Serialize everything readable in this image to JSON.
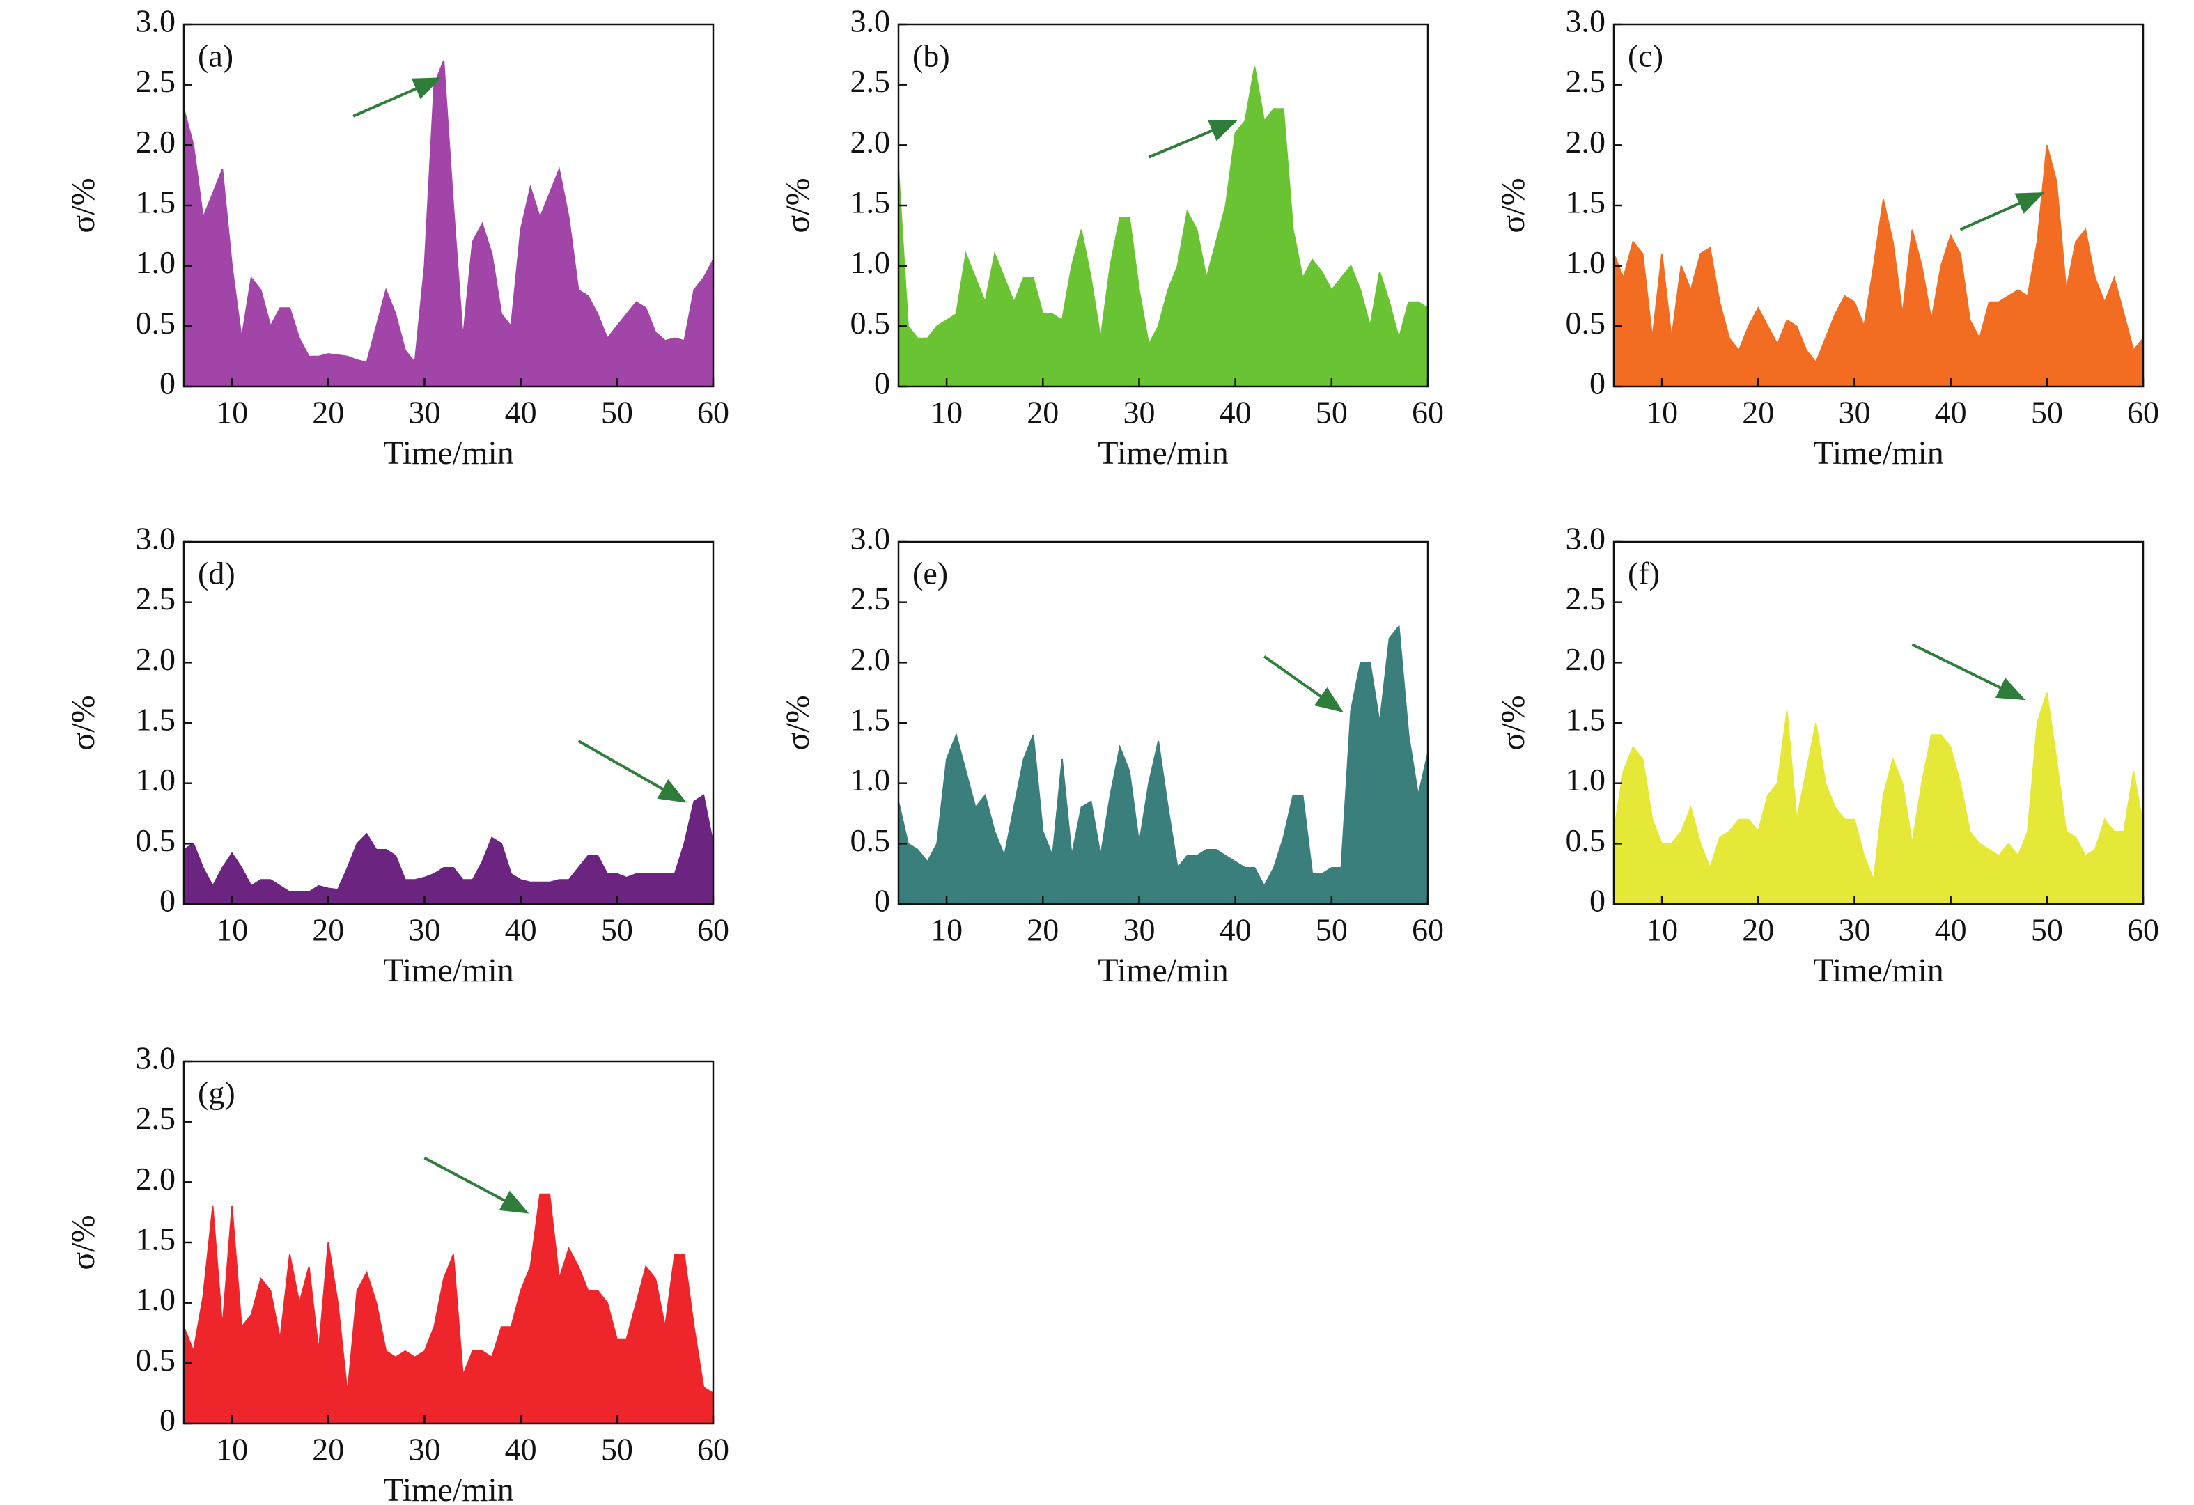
{
  "chart_data": [
    {
      "type": "area",
      "annotations": [
        "(a)"
      ],
      "x_label": "Time/min",
      "y_label": "σ/%",
      "color": "#a245a8",
      "x": [
        5,
        6,
        7,
        8,
        9,
        10,
        11,
        12,
        13,
        14,
        15,
        16,
        17,
        18,
        19,
        20,
        21,
        22,
        23,
        24,
        25,
        26,
        27,
        28,
        29,
        30,
        31,
        32,
        33,
        34,
        35,
        36,
        37,
        38,
        39,
        40,
        41,
        42,
        43,
        44,
        45,
        46,
        47,
        48,
        49,
        50,
        51,
        52,
        53,
        54,
        55,
        56,
        57,
        58,
        59,
        60
      ],
      "values": [
        2.3,
        2.0,
        1.4,
        1.6,
        1.8,
        1.0,
        0.4,
        0.9,
        0.8,
        0.5,
        0.65,
        0.65,
        0.4,
        0.25,
        0.25,
        0.27,
        0.26,
        0.25,
        0.22,
        0.2,
        0.5,
        0.8,
        0.6,
        0.3,
        0.2,
        1.0,
        2.5,
        2.7,
        1.5,
        0.4,
        1.2,
        1.35,
        1.1,
        0.6,
        0.5,
        1.3,
        1.65,
        1.4,
        1.6,
        1.8,
        1.4,
        0.8,
        0.75,
        0.6,
        0.4,
        0.5,
        0.6,
        0.7,
        0.65,
        0.45,
        0.38,
        0.4,
        0.38,
        0.8,
        0.9,
        1.05
      ],
      "xlim": [
        5,
        60
      ],
      "xticks": [
        10,
        20,
        30,
        40,
        50,
        60
      ],
      "ylim": [
        0,
        3
      ],
      "yticks": [
        0,
        0.5,
        {
          "value": 1,
          "label": "1.0"
        },
        1.5,
        {
          "value": 2,
          "label": "2.0"
        },
        2.5,
        {
          "value": 3,
          "label": "3.0"
        }
      ]
    },
    {
      "type": "area",
      "annotations": [
        "(b)"
      ],
      "x_label": "Time/min",
      "y_label": "σ/%",
      "color": "#6ac332",
      "x": [
        5,
        6,
        7,
        8,
        9,
        10,
        11,
        12,
        13,
        14,
        15,
        16,
        17,
        18,
        19,
        20,
        21,
        22,
        23,
        24,
        25,
        26,
        27,
        28,
        29,
        30,
        31,
        32,
        33,
        34,
        35,
        36,
        37,
        38,
        39,
        40,
        41,
        42,
        43,
        44,
        45,
        46,
        47,
        48,
        49,
        50,
        51,
        52,
        53,
        54,
        55,
        56,
        57,
        58,
        59,
        60
      ],
      "values": [
        1.8,
        0.5,
        0.4,
        0.4,
        0.5,
        0.55,
        0.6,
        1.1,
        0.9,
        0.7,
        1.1,
        0.9,
        0.7,
        0.9,
        0.9,
        0.6,
        0.6,
        0.55,
        1.0,
        1.3,
        0.9,
        0.4,
        1.0,
        1.4,
        1.4,
        0.8,
        0.35,
        0.5,
        0.8,
        1.0,
        1.45,
        1.3,
        0.9,
        1.2,
        1.5,
        2.1,
        2.2,
        2.65,
        2.2,
        2.3,
        2.3,
        1.3,
        0.9,
        1.05,
        0.95,
        0.8,
        0.9,
        1.0,
        0.8,
        0.5,
        0.95,
        0.7,
        0.4,
        0.7,
        0.7,
        0.65
      ],
      "xlim": [
        5,
        60
      ],
      "xticks": [
        10,
        20,
        30,
        40,
        50,
        60
      ],
      "ylim": [
        0,
        3
      ],
      "yticks": [
        0,
        0.5,
        {
          "value": 1,
          "label": "1.0"
        },
        1.5,
        {
          "value": 2,
          "label": "2.0"
        },
        2.5,
        {
          "value": 3,
          "label": "3.0"
        }
      ]
    },
    {
      "type": "area",
      "annotations": [
        "(c)"
      ],
      "x_label": "Time/min",
      "y_label": "σ/%",
      "color": "#f26d22",
      "x": [
        5,
        6,
        7,
        8,
        9,
        10,
        11,
        12,
        13,
        14,
        15,
        16,
        17,
        18,
        19,
        20,
        21,
        22,
        23,
        24,
        25,
        26,
        27,
        28,
        29,
        30,
        31,
        32,
        33,
        34,
        35,
        36,
        37,
        38,
        39,
        40,
        41,
        42,
        43,
        44,
        45,
        46,
        47,
        48,
        49,
        50,
        51,
        52,
        53,
        54,
        55,
        56,
        57,
        58,
        59,
        60
      ],
      "values": [
        1.1,
        0.9,
        1.2,
        1.1,
        0.4,
        1.1,
        0.4,
        1.0,
        0.8,
        1.1,
        1.15,
        0.7,
        0.4,
        0.3,
        0.5,
        0.65,
        0.5,
        0.35,
        0.55,
        0.5,
        0.3,
        0.2,
        0.4,
        0.6,
        0.75,
        0.7,
        0.5,
        1.0,
        1.55,
        1.2,
        0.6,
        1.3,
        1.0,
        0.55,
        1.0,
        1.25,
        1.1,
        0.55,
        0.4,
        0.7,
        0.7,
        0.75,
        0.8,
        0.75,
        1.2,
        2.0,
        1.7,
        0.8,
        1.2,
        1.3,
        0.9,
        0.7,
        0.9,
        0.6,
        0.3,
        0.4
      ],
      "xlim": [
        5,
        60
      ],
      "xticks": [
        10,
        20,
        30,
        40,
        50,
        60
      ],
      "ylim": [
        0,
        3
      ],
      "yticks": [
        0,
        0.5,
        {
          "value": 1,
          "label": "1.0"
        },
        1.5,
        {
          "value": 2,
          "label": "2.0"
        },
        2.5,
        {
          "value": 3,
          "label": "3.0"
        }
      ]
    },
    {
      "type": "area",
      "annotations": [
        "(d)"
      ],
      "x_label": "Time/min",
      "y_label": "σ/%",
      "color": "#6b2480",
      "x": [
        5,
        6,
        7,
        8,
        9,
        10,
        11,
        12,
        13,
        14,
        15,
        16,
        17,
        18,
        19,
        20,
        21,
        22,
        23,
        24,
        25,
        26,
        27,
        28,
        29,
        30,
        31,
        32,
        33,
        34,
        35,
        36,
        37,
        38,
        39,
        40,
        41,
        42,
        43,
        44,
        45,
        46,
        47,
        48,
        49,
        50,
        51,
        52,
        53,
        54,
        55,
        56,
        57,
        58,
        59,
        60
      ],
      "values": [
        0.45,
        0.5,
        0.3,
        0.15,
        0.3,
        0.42,
        0.3,
        0.15,
        0.2,
        0.2,
        0.15,
        0.1,
        0.1,
        0.1,
        0.15,
        0.13,
        0.12,
        0.3,
        0.5,
        0.58,
        0.45,
        0.45,
        0.4,
        0.2,
        0.2,
        0.22,
        0.25,
        0.3,
        0.3,
        0.2,
        0.2,
        0.35,
        0.55,
        0.5,
        0.25,
        0.2,
        0.18,
        0.18,
        0.18,
        0.2,
        0.2,
        0.3,
        0.4,
        0.4,
        0.25,
        0.25,
        0.22,
        0.25,
        0.25,
        0.25,
        0.25,
        0.25,
        0.5,
        0.85,
        0.9,
        0.5
      ],
      "xlim": [
        5,
        60
      ],
      "xticks": [
        10,
        20,
        30,
        40,
        50,
        60
      ],
      "ylim": [
        0,
        3
      ],
      "yticks": [
        0,
        0.5,
        {
          "value": 1,
          "label": "1.0"
        },
        1.5,
        {
          "value": 2,
          "label": "2.0"
        },
        2.5,
        {
          "value": 3,
          "label": "3.0"
        }
      ]
    },
    {
      "type": "area",
      "annotations": [
        "(e)"
      ],
      "x_label": "Time/min",
      "y_label": "σ/%",
      "color": "#3a7f7b",
      "x": [
        5,
        6,
        7,
        8,
        9,
        10,
        11,
        12,
        13,
        14,
        15,
        16,
        17,
        18,
        19,
        20,
        21,
        22,
        23,
        24,
        25,
        26,
        27,
        28,
        29,
        30,
        31,
        32,
        33,
        34,
        35,
        36,
        37,
        38,
        39,
        40,
        41,
        42,
        43,
        44,
        45,
        46,
        47,
        48,
        49,
        50,
        51,
        52,
        53,
        54,
        55,
        56,
        57,
        58,
        59,
        60
      ],
      "values": [
        0.85,
        0.5,
        0.45,
        0.35,
        0.5,
        1.2,
        1.4,
        1.1,
        0.8,
        0.9,
        0.6,
        0.4,
        0.8,
        1.2,
        1.4,
        0.6,
        0.4,
        1.2,
        0.4,
        0.8,
        0.85,
        0.4,
        0.9,
        1.3,
        1.1,
        0.5,
        1.0,
        1.35,
        0.8,
        0.3,
        0.4,
        0.4,
        0.45,
        0.45,
        0.4,
        0.35,
        0.3,
        0.3,
        0.15,
        0.3,
        0.55,
        0.9,
        0.9,
        0.25,
        0.25,
        0.3,
        0.3,
        1.6,
        2.0,
        2.0,
        1.5,
        2.2,
        2.3,
        1.4,
        0.9,
        1.25
      ],
      "xlim": [
        5,
        60
      ],
      "xticks": [
        10,
        20,
        30,
        40,
        50,
        60
      ],
      "ylim": [
        0,
        3
      ],
      "yticks": [
        0,
        0.5,
        {
          "value": 1,
          "label": "1.0"
        },
        1.5,
        {
          "value": 2,
          "label": "2.0"
        },
        2.5,
        {
          "value": 3,
          "label": "3.0"
        }
      ]
    },
    {
      "type": "area",
      "annotations": [
        "(f)"
      ],
      "x_label": "Time/min",
      "y_label": "σ/%",
      "color": "#e5e837",
      "x": [
        5,
        6,
        7,
        8,
        9,
        10,
        11,
        12,
        13,
        14,
        15,
        16,
        17,
        18,
        19,
        20,
        21,
        22,
        23,
        24,
        25,
        26,
        27,
        28,
        29,
        30,
        31,
        32,
        33,
        34,
        35,
        36,
        37,
        38,
        39,
        40,
        41,
        42,
        43,
        44,
        45,
        46,
        47,
        48,
        49,
        50,
        51,
        52,
        53,
        54,
        55,
        56,
        57,
        58,
        59,
        60
      ],
      "values": [
        0.6,
        1.1,
        1.3,
        1.2,
        0.7,
        0.5,
        0.5,
        0.6,
        0.8,
        0.5,
        0.3,
        0.55,
        0.6,
        0.7,
        0.7,
        0.6,
        0.9,
        1.0,
        1.6,
        0.7,
        1.1,
        1.5,
        1.0,
        0.8,
        0.7,
        0.7,
        0.4,
        0.2,
        0.9,
        1.2,
        1.0,
        0.5,
        1.0,
        1.4,
        1.4,
        1.3,
        1.0,
        0.6,
        0.5,
        0.45,
        0.4,
        0.5,
        0.4,
        0.6,
        1.5,
        1.75,
        1.2,
        0.6,
        0.55,
        0.4,
        0.45,
        0.7,
        0.6,
        0.6,
        1.1,
        0.65
      ],
      "xlim": [
        5,
        60
      ],
      "xticks": [
        10,
        20,
        30,
        40,
        50,
        60
      ],
      "ylim": [
        0,
        3
      ],
      "yticks": [
        0,
        0.5,
        {
          "value": 1,
          "label": "1.0"
        },
        1.5,
        {
          "value": 2,
          "label": "2.0"
        },
        2.5,
        {
          "value": 3,
          "label": "3.0"
        }
      ]
    },
    {
      "type": "area",
      "annotations": [
        "(g)"
      ],
      "x_label": "Time/min",
      "y_label": "σ/%",
      "color": "#ee262b",
      "x": [
        5,
        6,
        7,
        8,
        9,
        10,
        11,
        12,
        13,
        14,
        15,
        16,
        17,
        18,
        19,
        20,
        21,
        22,
        23,
        24,
        25,
        26,
        27,
        28,
        29,
        30,
        31,
        32,
        33,
        34,
        35,
        36,
        37,
        38,
        39,
        40,
        41,
        42,
        43,
        44,
        45,
        46,
        47,
        48,
        49,
        50,
        51,
        52,
        53,
        54,
        55,
        56,
        57,
        58,
        59,
        60
      ],
      "values": [
        0.8,
        0.6,
        1.05,
        1.8,
        0.8,
        1.8,
        0.8,
        0.9,
        1.2,
        1.1,
        0.7,
        1.4,
        1.0,
        1.3,
        0.6,
        1.5,
        1.0,
        0.25,
        1.1,
        1.25,
        1.0,
        0.6,
        0.55,
        0.6,
        0.55,
        0.6,
        0.8,
        1.2,
        1.4,
        0.4,
        0.6,
        0.6,
        0.55,
        0.8,
        0.8,
        1.1,
        1.3,
        1.9,
        1.9,
        1.2,
        1.45,
        1.3,
        1.1,
        1.1,
        1.0,
        0.7,
        0.7,
        1.0,
        1.3,
        1.2,
        0.8,
        1.4,
        1.4,
        0.8,
        0.3,
        0.25
      ],
      "xlim": [
        5,
        60
      ],
      "xticks": [
        10,
        20,
        30,
        40,
        50,
        60
      ],
      "ylim": [
        0,
        3
      ],
      "yticks": [
        0,
        0.5,
        {
          "value": 1,
          "label": "1.0"
        },
        1.5,
        {
          "value": 2,
          "label": "2.0"
        },
        2.5,
        {
          "value": 3,
          "label": "3.0"
        }
      ]
    }
  ]
}
